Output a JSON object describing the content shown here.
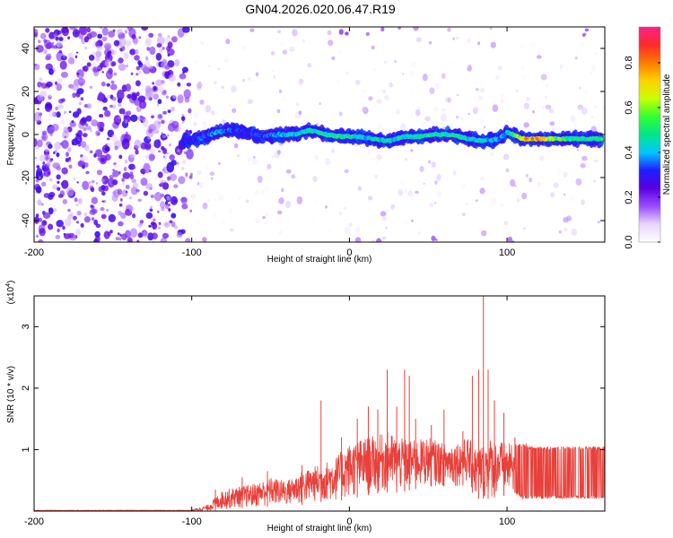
{
  "title": "GN04.2026.020.06.47.R19",
  "chart_data": [
    {
      "type": "heatmap",
      "xlabel": "Height of straight line (km)",
      "ylabel": "Frequency (Hz)",
      "xlim": [
        -200,
        162
      ],
      "ylim": [
        -50,
        50
      ],
      "x_ticks": [
        "-200",
        "-100",
        "0",
        "100"
      ],
      "x_tick_values": [
        -200,
        -100,
        0,
        100
      ],
      "y_ticks": [
        "-40",
        "-20",
        "0",
        "20",
        "40"
      ],
      "y_tick_values": [
        -40,
        -20,
        0,
        20,
        40
      ],
      "colorbar": {
        "label": "Normalized spectral amplitude",
        "range": [
          0,
          0.96
        ],
        "ticks": [
          "0.0",
          "0.2",
          "0.4",
          "0.6",
          "0.8"
        ],
        "tick_values": [
          0.0,
          0.2,
          0.4,
          0.6,
          0.8
        ],
        "colors": [
          "#ffffff",
          "#e8d6ff",
          "#9a4dff",
          "#5a00e0",
          "#1e1eff",
          "#00c8ff",
          "#00e68a",
          "#33ff33",
          "#c8ff00",
          "#ffd200",
          "#ff7a00",
          "#ff2a2a",
          "#ff1e8c"
        ]
      },
      "ridge": {
        "x": [
          -105,
          -95,
          -85,
          -75,
          -65,
          -55,
          -45,
          -35,
          -25,
          -15,
          -5,
          5,
          15,
          25,
          35,
          45,
          55,
          65,
          75,
          85,
          95,
          100,
          110,
          120,
          130,
          140,
          150,
          160
        ],
        "y": [
          -3,
          -2,
          1,
          2,
          1,
          -1,
          0,
          0,
          2,
          0,
          -1,
          -1,
          -2,
          -3,
          -1,
          -1,
          0,
          0,
          -2,
          -3,
          -2,
          1,
          -2,
          -2,
          -2,
          -2,
          -2,
          -2
        ],
        "amplitude": [
          0.3,
          0.35,
          0.4,
          0.35,
          0.3,
          0.35,
          0.4,
          0.45,
          0.45,
          0.5,
          0.5,
          0.45,
          0.45,
          0.45,
          0.45,
          0.5,
          0.5,
          0.5,
          0.45,
          0.45,
          0.4,
          0.4,
          0.7,
          0.75,
          0.6,
          0.5,
          0.5,
          0.5
        ]
      }
    },
    {
      "type": "line",
      "xlabel": "Height of straight line (km)",
      "ylabel": "SNR (10 * v/v)",
      "y_multiplier": "(x10",
      "y_multiplier_exp": "4",
      "y_multiplier_close": ")",
      "xlim": [
        -200,
        162
      ],
      "ylim": [
        0,
        3.5
      ],
      "x_ticks": [
        "-200",
        "-100",
        "0",
        "100"
      ],
      "x_tick_values": [
        -200,
        -100,
        0,
        100
      ],
      "y_ticks": [
        "1",
        "2",
        "3"
      ],
      "y_tick_values": [
        1,
        2,
        3
      ],
      "color": "#e8403a",
      "envelope": {
        "x": [
          -200,
          -150,
          -100,
          -90,
          -80,
          -70,
          -60,
          -50,
          -40,
          -30,
          -20,
          -10,
          0,
          10,
          20,
          25,
          30,
          40,
          50,
          60,
          70,
          75,
          80,
          85,
          90,
          95,
          100,
          105,
          110,
          115,
          120,
          130,
          140,
          150,
          162
        ],
        "low": [
          0.0,
          0.0,
          0.0,
          0.0,
          0.02,
          0.05,
          0.05,
          0.08,
          0.08,
          0.1,
          0.15,
          0.15,
          0.2,
          0.25,
          0.3,
          0.3,
          0.3,
          0.35,
          0.4,
          0.4,
          0.4,
          0.45,
          0.2,
          0.2,
          0.2,
          0.25,
          0.25,
          0.3,
          0.2,
          0.2,
          0.2,
          0.2,
          0.2,
          0.2,
          0.2
        ],
        "high": [
          0.0,
          0.0,
          0.02,
          0.1,
          0.35,
          0.4,
          0.45,
          0.55,
          0.5,
          0.65,
          0.75,
          0.85,
          1.1,
          1.2,
          1.25,
          1.3,
          1.2,
          1.15,
          1.2,
          1.1,
          1.15,
          1.2,
          1.05,
          1.1,
          1.2,
          1.15,
          1.1,
          1.1,
          1.1,
          1.05,
          1.05,
          1.05,
          1.05,
          1.05,
          1.05
        ]
      },
      "peaks": [
        {
          "x": -85,
          "y": 0.35
        },
        {
          "x": -68,
          "y": 0.55
        },
        {
          "x": -52,
          "y": 0.65
        },
        {
          "x": -30,
          "y": 0.75
        },
        {
          "x": -18,
          "y": 1.8
        },
        {
          "x": -5,
          "y": 1.2
        },
        {
          "x": 5,
          "y": 1.5
        },
        {
          "x": 12,
          "y": 1.7
        },
        {
          "x": 18,
          "y": 1.65
        },
        {
          "x": 24,
          "y": 2.3
        },
        {
          "x": 30,
          "y": 1.7
        },
        {
          "x": 35,
          "y": 2.3
        },
        {
          "x": 38,
          "y": 2.2
        },
        {
          "x": 42,
          "y": 1.5
        },
        {
          "x": 52,
          "y": 1.4
        },
        {
          "x": 60,
          "y": 1.65
        },
        {
          "x": 72,
          "y": 1.3
        },
        {
          "x": 78,
          "y": 2.2
        },
        {
          "x": 82,
          "y": 2.3
        },
        {
          "x": 85,
          "y": 3.5
        },
        {
          "x": 88,
          "y": 2.3
        },
        {
          "x": 92,
          "y": 1.8
        },
        {
          "x": 98,
          "y": 1.6
        },
        {
          "x": 105,
          "y": 1.2
        },
        {
          "x": 108,
          "y": 1.05
        },
        {
          "x": 112,
          "y": 1.1
        }
      ]
    }
  ]
}
